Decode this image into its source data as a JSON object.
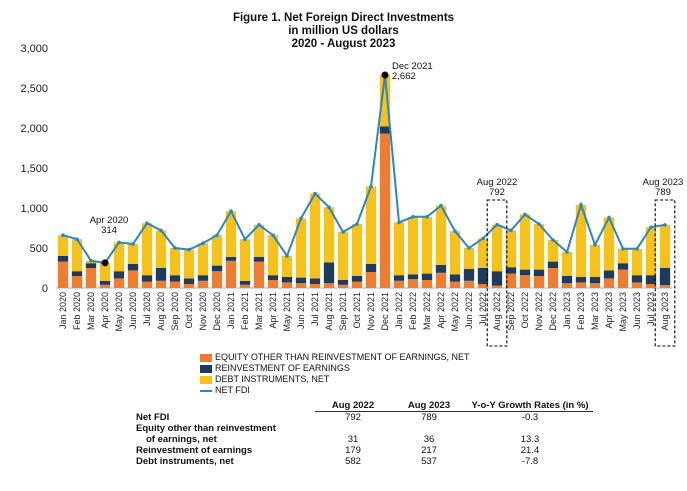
{
  "title": {
    "line1": "Figure 1. Net Foreign Direct Investments",
    "line2": "in million US dollars",
    "line3": "2020 - August 2023"
  },
  "colors": {
    "equity": "#ED7D31",
    "reinvestment": "#1F3B5C",
    "debt": "#F5C21B",
    "net_fdi": "#2E86C1"
  },
  "chart_data": {
    "type": "bar",
    "stacked": true,
    "ylim": [
      0,
      3000
    ],
    "yticks": [
      "0",
      "500",
      "1,000",
      "1,500",
      "2,000",
      "2,500",
      "3,000"
    ],
    "grid": false,
    "legend_position": "bottom",
    "categories": [
      "Jan 2020",
      "Feb 2020",
      "Mar 2020",
      "Apr 2020",
      "May 2020",
      "Jun 2020",
      "Jul 2020",
      "Aug 2020",
      "Sep 2020",
      "Oct 2020",
      "Nov 2020",
      "Dec 2020",
      "Jan 2021",
      "Feb 2021",
      "Mar 2021",
      "Apr 2021",
      "May 2021",
      "Jun 2021",
      "Jul 2021",
      "Aug 2021",
      "Sep 2021",
      "Oct 2021",
      "Nov 2021",
      "Dec 2021",
      "Jan 2022",
      "Feb 2022",
      "Mar 2022",
      "Apr 2022",
      "May 2022",
      "Jun 2022",
      "Jul 2022",
      "Aug 2022",
      "Sep 2022",
      "Oct 2022",
      "Nov 2022",
      "Dec 2022",
      "Jan 2023",
      "Feb 2023",
      "Mar 2023",
      "Apr 2023",
      "May 2023",
      "Jun 2023",
      "Jul 2023",
      "Aug 2023"
    ],
    "series": [
      {
        "name": "EQUITY OTHER THAN REINVESTMENT OF EARNINGS, NET",
        "values": [
          330,
          150,
          250,
          40,
          120,
          220,
          80,
          90,
          80,
          50,
          90,
          210,
          340,
          40,
          330,
          100,
          70,
          60,
          50,
          60,
          40,
          80,
          200,
          1930,
          90,
          110,
          100,
          190,
          80,
          90,
          50,
          31,
          180,
          160,
          150,
          250,
          60,
          70,
          60,
          120,
          230,
          70,
          50,
          36
        ]
      },
      {
        "name": "REINVESTMENT OF EARNINGS",
        "values": [
          70,
          60,
          60,
          50,
          90,
          80,
          80,
          160,
          80,
          70,
          70,
          70,
          50,
          50,
          60,
          60,
          70,
          70,
          70,
          260,
          60,
          70,
          100,
          90,
          70,
          60,
          80,
          100,
          90,
          150,
          200,
          179,
          80,
          70,
          80,
          80,
          90,
          70,
          80,
          100,
          80,
          90,
          110,
          217
        ]
      },
      {
        "name": "DEBT INSTRUMENTS, NET",
        "values": [
          260,
          400,
          30,
          224,
          360,
          250,
          650,
          470,
          340,
          360,
          400,
          380,
          570,
          520,
          400,
          500,
          260,
          740,
          1060,
          690,
          600,
          650,
          970,
          642,
          660,
          720,
          710,
          740,
          540,
          260,
          370,
          582,
          460,
          690,
          570,
          270,
          300,
          900,
          400,
          660,
          180,
          330,
          600,
          537
        ]
      }
    ],
    "line_series": {
      "name": "NET FDI",
      "values": [
        660,
        610,
        340,
        314,
        570,
        550,
        810,
        720,
        500,
        480,
        560,
        660,
        960,
        610,
        790,
        660,
        400,
        870,
        1180,
        1010,
        700,
        800,
        1270,
        2662,
        820,
        890,
        890,
        1030,
        710,
        500,
        620,
        792,
        720,
        920,
        800,
        600,
        450,
        1040,
        540,
        880,
        490,
        490,
        760,
        789
      ]
    },
    "annotations": [
      {
        "label": "Apr 2020",
        "value": "314"
      },
      {
        "label": "Dec 2021",
        "value": "2,662"
      },
      {
        "label": "Aug 2022",
        "value": "792"
      },
      {
        "label": "Aug 2023",
        "value": "789"
      }
    ]
  },
  "legend": [
    {
      "label": "EQUITY OTHER THAN REINVESTMENT OF EARNINGS, NET",
      "kind": "equity"
    },
    {
      "label": "REINVESTMENT OF EARNINGS",
      "kind": "reinvestment"
    },
    {
      "label": "DEBT INSTRUMENTS, NET",
      "kind": "debt"
    },
    {
      "label": "NET FDI",
      "kind": "net_fdi"
    }
  ],
  "table": {
    "headers": [
      "",
      "Aug 2022",
      "Aug 2023",
      "Y-o-Y Growth Rates (in %)"
    ],
    "rows": [
      {
        "label": "Net FDI",
        "label2": "",
        "a": "792",
        "b": "789",
        "g": "-0.3"
      },
      {
        "label": "Equity other than reinvestment",
        "label2": "of earnings, net",
        "a": "31",
        "b": "36",
        "g": "13.3"
      },
      {
        "label": "Reinvestment of earnings",
        "label2": "",
        "a": "179",
        "b": "217",
        "g": "21.4"
      },
      {
        "label": "Debt instruments, net",
        "label2": "",
        "a": "582",
        "b": "537",
        "g": "-7.8"
      }
    ]
  }
}
